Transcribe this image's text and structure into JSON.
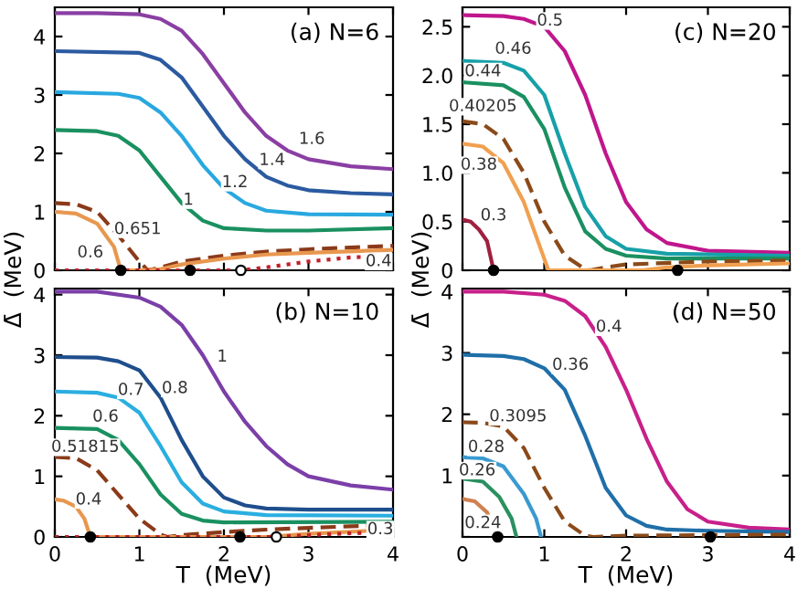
{
  "chart_data": [
    {
      "type": "line",
      "title": "(a) N=6",
      "ylabel": "Δ̄  (MeV)",
      "xlim": [
        0,
        4
      ],
      "ylim": [
        0,
        4.5
      ],
      "xticks": [
        0,
        1,
        2,
        3,
        4
      ],
      "yticks": [
        0,
        1,
        2,
        3,
        4
      ],
      "tick_labels": "y",
      "legend": false,
      "grid": false,
      "marker": "none",
      "series": [
        {
          "name": "1.6",
          "color": "#8a3fa3",
          "x": [
            0,
            0.5,
            1,
            1.25,
            1.5,
            1.75,
            2,
            2.25,
            2.5,
            2.75,
            3,
            3.5,
            4
          ],
          "values": [
            4.4,
            4.4,
            4.38,
            4.3,
            4.1,
            3.7,
            3.2,
            2.7,
            2.3,
            2.05,
            1.9,
            1.78,
            1.73
          ]
        },
        {
          "name": "1.4",
          "color": "#2b5aa0",
          "x": [
            0,
            1,
            1.25,
            1.5,
            1.75,
            2,
            2.25,
            2.5,
            2.75,
            3,
            3.5,
            4
          ],
          "values": [
            3.75,
            3.72,
            3.6,
            3.3,
            2.8,
            2.3,
            1.9,
            1.6,
            1.45,
            1.37,
            1.32,
            1.3
          ]
        },
        {
          "name": "1.2",
          "color": "#29a8e0",
          "x": [
            0,
            0.75,
            1,
            1.25,
            1.5,
            1.75,
            2,
            2.25,
            2.5,
            3,
            4
          ],
          "values": [
            3.05,
            3.02,
            2.95,
            2.7,
            2.3,
            1.8,
            1.4,
            1.15,
            1.02,
            0.96,
            0.95
          ]
        },
        {
          "name": "1",
          "color": "#1a9060",
          "x": [
            0,
            0.5,
            0.75,
            1,
            1.25,
            1.5,
            1.75,
            2,
            2.5,
            3,
            4
          ],
          "values": [
            2.4,
            2.38,
            2.3,
            2.05,
            1.6,
            1.15,
            0.85,
            0.72,
            0.68,
            0.68,
            0.72
          ]
        },
        {
          "name": "0.651",
          "color": "#8b3a1a",
          "line_style": "dashed",
          "x": [
            0,
            0.25,
            0.5,
            0.75,
            1,
            1.1,
            1.25,
            1.5,
            2,
            2.5,
            3,
            4
          ],
          "values": [
            1.15,
            1.13,
            1.0,
            0.6,
            0.15,
            0,
            0.05,
            0.15,
            0.25,
            0.32,
            0.36,
            0.42
          ]
        },
        {
          "name": "0.6",
          "color": "#e8974f",
          "x": [
            0,
            0.25,
            0.5,
            0.7,
            0.78,
            1,
            1.25,
            1.5,
            2,
            2.5,
            3,
            4
          ],
          "values": [
            1.0,
            0.97,
            0.8,
            0.4,
            0,
            0,
            0.02,
            0.1,
            0.2,
            0.27,
            0.3,
            0.35
          ]
        },
        {
          "name": "0.4",
          "color": "#c0202a",
          "line_style": "dotted",
          "x": [
            0,
            2.2,
            2.5,
            3,
            3.5,
            4
          ],
          "values": [
            0,
            0,
            0.05,
            0.15,
            0.22,
            0.25
          ]
        },
        {
          "type": "scatter",
          "marker": "circle",
          "color": "#000000",
          "x": [
            0.78,
            1.6
          ],
          "values": [
            0,
            0
          ]
        },
        {
          "type": "scatter",
          "marker": "circle",
          "color": "#ffffff",
          "x": [
            2.2
          ],
          "values": [
            0
          ]
        }
      ]
    },
    {
      "type": "line",
      "title": "(c) N=20",
      "ylabel": "Δ̄  (MeV)",
      "xlim": [
        0,
        4
      ],
      "ylim": [
        0,
        2.7
      ],
      "xticks": [
        0,
        1,
        2,
        3,
        4
      ],
      "yticks": [
        0,
        0.5,
        {
          "value": 1,
          "label": "1.0"
        },
        1.5,
        {
          "value": 2,
          "label": "2.0"
        },
        2.5
      ],
      "tick_labels": "y",
      "legend": false,
      "grid": false,
      "marker": "none",
      "series": [
        {
          "name": "0.5",
          "color": "#c0168c",
          "x": [
            0,
            0.5,
            0.75,
            1,
            1.25,
            1.5,
            1.75,
            2,
            2.25,
            2.5,
            3,
            4
          ],
          "values": [
            2.62,
            2.61,
            2.58,
            2.5,
            2.25,
            1.8,
            1.2,
            0.7,
            0.42,
            0.28,
            0.2,
            0.18
          ]
        },
        {
          "name": "0.46",
          "color": "#17a0a8",
          "x": [
            0,
            0.5,
            0.75,
            1,
            1.25,
            1.5,
            1.75,
            2,
            2.5,
            4
          ],
          "values": [
            2.15,
            2.13,
            2.05,
            1.8,
            1.2,
            0.65,
            0.35,
            0.22,
            0.17,
            0.15
          ]
        },
        {
          "name": "0.44",
          "color": "#1a9060",
          "x": [
            0,
            0.5,
            0.75,
            1,
            1.25,
            1.5,
            1.75,
            2,
            2.5,
            4
          ],
          "values": [
            1.93,
            1.9,
            1.78,
            1.45,
            0.85,
            0.4,
            0.22,
            0.15,
            0.12,
            0.12
          ]
        },
        {
          "name": "0.40205",
          "color": "#8b4a1a",
          "line_style": "dashed",
          "x": [
            0,
            0.25,
            0.5,
            0.75,
            1,
            1.25,
            1.5,
            1.56,
            1.75,
            2,
            3,
            4
          ],
          "values": [
            1.53,
            1.5,
            1.35,
            1.0,
            0.5,
            0.15,
            0.01,
            0,
            0.03,
            0.06,
            0.09,
            0.1
          ]
        },
        {
          "name": "0.38",
          "color": "#f0a050",
          "x": [
            0,
            0.25,
            0.5,
            0.75,
            0.9,
            1.05,
            2.2,
            2.5,
            3,
            4
          ],
          "values": [
            1.3,
            1.27,
            1.1,
            0.7,
            0.35,
            0,
            0,
            0.03,
            0.05,
            0.07
          ]
        },
        {
          "name": "0.3",
          "color": "#a02040",
          "x": [
            0,
            0.1,
            0.2,
            0.3,
            0.38
          ],
          "values": [
            0.52,
            0.5,
            0.42,
            0.3,
            0
          ]
        },
        {
          "type": "scatter",
          "marker": "circle",
          "color": "#000000",
          "x": [
            0.38,
            2.63
          ],
          "values": [
            0,
            0
          ]
        }
      ]
    },
    {
      "type": "line",
      "title": "(b) N=10",
      "xlabel": "T  (MeV)",
      "xlim": [
        0,
        4
      ],
      "ylim": [
        0,
        4.1
      ],
      "xticks": [
        0,
        1,
        2,
        3,
        4
      ],
      "yticks": [
        0,
        1,
        2,
        3,
        4
      ],
      "legend": false,
      "grid": false,
      "marker": "none",
      "series": [
        {
          "name": "1",
          "color": "#7b3fa8",
          "x": [
            0,
            0.5,
            1,
            1.25,
            1.5,
            1.75,
            2,
            2.25,
            2.5,
            2.75,
            3,
            3.5,
            4
          ],
          "values": [
            4.05,
            4.05,
            3.95,
            3.8,
            3.5,
            3.0,
            2.4,
            1.9,
            1.5,
            1.2,
            1.0,
            0.85,
            0.78
          ]
        },
        {
          "name": "0.8",
          "color": "#1f4e8c",
          "x": [
            0,
            0.5,
            0.75,
            1,
            1.25,
            1.5,
            1.75,
            2,
            2.25,
            2.5,
            3,
            4
          ],
          "values": [
            2.97,
            2.96,
            2.9,
            2.75,
            2.3,
            1.6,
            1.0,
            0.65,
            0.52,
            0.47,
            0.45,
            0.45
          ]
        },
        {
          "name": "0.7",
          "color": "#2aaee0",
          "x": [
            0,
            0.5,
            0.75,
            1,
            1.25,
            1.5,
            1.75,
            2,
            2.5,
            4
          ],
          "values": [
            2.4,
            2.38,
            2.3,
            2.05,
            1.5,
            0.9,
            0.55,
            0.42,
            0.36,
            0.35
          ]
        },
        {
          "name": "0.6",
          "color": "#1a9060",
          "x": [
            0,
            0.5,
            0.75,
            1,
            1.25,
            1.5,
            1.75,
            2,
            4
          ],
          "values": [
            1.8,
            1.78,
            1.6,
            1.2,
            0.7,
            0.38,
            0.27,
            0.24,
            0.25
          ]
        },
        {
          "name": "0.51815",
          "color": "#8b3a1a",
          "line_style": "dashed",
          "x": [
            0,
            0.25,
            0.5,
            0.75,
            1,
            1.25,
            1.33,
            1.5,
            2,
            2.5,
            3,
            4
          ],
          "values": [
            1.32,
            1.3,
            1.1,
            0.7,
            0.3,
            0.04,
            0,
            0.03,
            0.08,
            0.12,
            0.15,
            0.2
          ]
        },
        {
          "name": "0.4",
          "color": "#e8974f",
          "x": [
            0,
            0.1,
            0.25,
            0.35,
            0.42,
            2.5,
            3,
            4
          ],
          "values": [
            0.62,
            0.6,
            0.5,
            0.3,
            0,
            0,
            0.05,
            0.12
          ]
        },
        {
          "name": "0.3",
          "color": "#c0202a",
          "line_style": "dotted",
          "x": [
            0,
            2.6,
            3,
            3.5,
            4
          ],
          "values": [
            0,
            0,
            0.03,
            0.06,
            0.08
          ]
        },
        {
          "type": "scatter",
          "marker": "circle",
          "color": "#000000",
          "x": [
            0.42,
            2.19
          ],
          "values": [
            0,
            0
          ]
        },
        {
          "type": "scatter",
          "marker": "circle",
          "color": "#ffffff",
          "x": [
            2.62
          ],
          "values": [
            0
          ]
        }
      ]
    },
    {
      "type": "line",
      "title": "(d) N=50",
      "xlabel": "T  (MeV)",
      "xlim": [
        0,
        4
      ],
      "ylim": [
        0,
        4.05
      ],
      "xticks": [
        0,
        1,
        2,
        3,
        4
      ],
      "yticks": [
        {
          "value": 0,
          "label": null
        },
        1,
        2,
        3,
        4
      ],
      "legend": false,
      "grid": false,
      "marker": "none",
      "series": [
        {
          "name": "0.4",
          "color": "#c8208a",
          "x": [
            0,
            0.5,
            1,
            1.25,
            1.5,
            1.75,
            2,
            2.25,
            2.5,
            2.75,
            3,
            3.5,
            4
          ],
          "values": [
            4.0,
            4.0,
            3.95,
            3.85,
            3.6,
            3.1,
            2.4,
            1.6,
            0.9,
            0.45,
            0.25,
            0.15,
            0.12
          ]
        },
        {
          "name": "0.36",
          "color": "#1f6fa8",
          "x": [
            0,
            0.5,
            0.75,
            1,
            1.25,
            1.5,
            1.75,
            2,
            2.25,
            2.5,
            3,
            4
          ],
          "values": [
            2.97,
            2.95,
            2.9,
            2.75,
            2.4,
            1.65,
            0.8,
            0.35,
            0.18,
            0.12,
            0.1,
            0.08
          ]
        },
        {
          "name": "0.3095",
          "color": "#8b4a1a",
          "line_style": "dashed",
          "x": [
            0,
            0.25,
            0.5,
            0.75,
            1,
            1.25,
            1.5,
            1.6,
            2,
            3,
            4
          ],
          "values": [
            1.87,
            1.86,
            1.8,
            1.45,
            0.8,
            0.25,
            0.02,
            0,
            0.02,
            0.03,
            0.04
          ]
        },
        {
          "name": "0.28",
          "color": "#3a9ad0",
          "x": [
            0,
            0.25,
            0.5,
            0.75,
            0.9,
            0.96
          ],
          "values": [
            1.3,
            1.28,
            1.15,
            0.7,
            0.3,
            0
          ]
        },
        {
          "name": "0.26",
          "color": "#2a9060",
          "x": [
            0,
            0.25,
            0.45,
            0.6,
            0.66
          ],
          "values": [
            0.95,
            0.9,
            0.65,
            0.3,
            0
          ]
        },
        {
          "name": "0.24",
          "color": "#d08050",
          "x": [
            0,
            0.15,
            0.3,
            0.43
          ],
          "values": [
            0.62,
            0.58,
            0.4,
            0
          ]
        },
        {
          "type": "scatter",
          "marker": "circle",
          "color": "#000000",
          "x": [
            0.43,
            3.03
          ],
          "values": [
            0,
            0
          ]
        }
      ]
    }
  ]
}
